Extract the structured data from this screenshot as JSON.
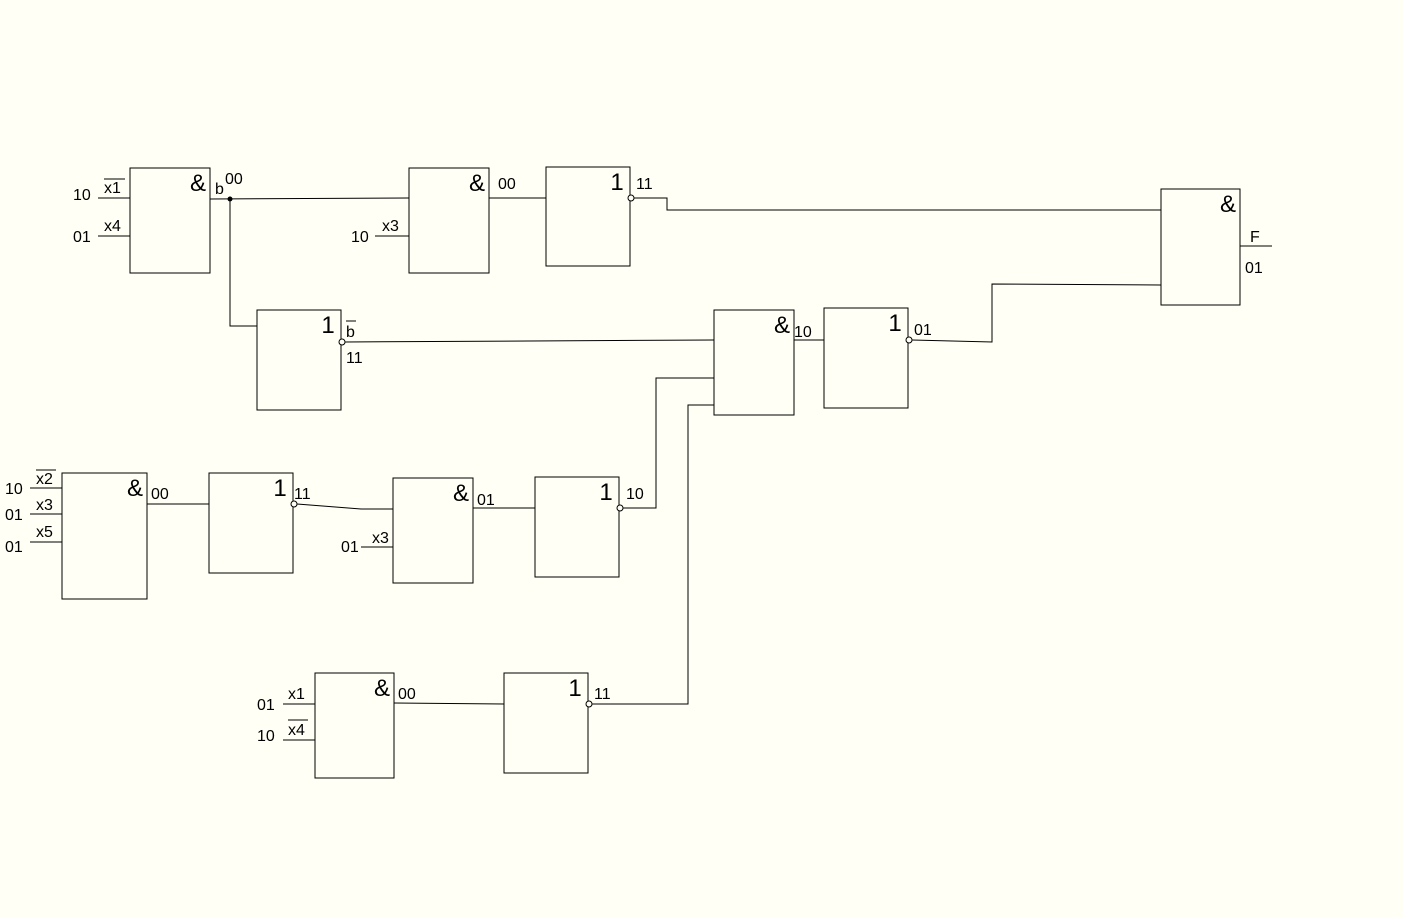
{
  "background": "#fffff5",
  "stroke": "#000000",
  "gates": [
    {
      "id": "g1",
      "symbol": "&"
    },
    {
      "id": "g2",
      "symbol": "&"
    },
    {
      "id": "g3",
      "symbol": "1"
    },
    {
      "id": "g4",
      "symbol": "1"
    },
    {
      "id": "g5",
      "symbol": "&"
    },
    {
      "id": "g6",
      "symbol": "1"
    },
    {
      "id": "g7",
      "symbol": "&"
    },
    {
      "id": "g8",
      "symbol": "&"
    },
    {
      "id": "g9",
      "symbol": "1"
    },
    {
      "id": "g10",
      "symbol": "&"
    },
    {
      "id": "g11",
      "symbol": "1"
    },
    {
      "id": "g12",
      "symbol": "&"
    },
    {
      "id": "g13",
      "symbol": "1"
    }
  ],
  "inputs": {
    "g1_a": {
      "name": "x1",
      "inverted": true,
      "value": "10"
    },
    "g1_b": {
      "name": "x4",
      "inverted": false,
      "value": "01"
    },
    "g2_b": {
      "name": "x3",
      "inverted": false,
      "value": "10"
    },
    "g8_a": {
      "name": "x2",
      "inverted": true,
      "value": "10"
    },
    "g8_b": {
      "name": "x3",
      "inverted": false,
      "value": "01"
    },
    "g8_c": {
      "name": "x5",
      "inverted": false,
      "value": "01"
    },
    "g10_b": {
      "name": "x3",
      "inverted": false,
      "value": "01"
    },
    "g12_a": {
      "name": "x1",
      "inverted": false,
      "value": "01"
    },
    "g12_b": {
      "name": "x4",
      "inverted": true,
      "value": "10"
    }
  },
  "signals": {
    "b_name": "b",
    "b_value": "00",
    "b_not_name": "b",
    "b_not_value": "11",
    "g2_out": "00",
    "g3_out": "11",
    "g5_out": "10",
    "g6_out": "01",
    "g8_out": "00",
    "g9_out": "11",
    "g10_out": "01",
    "g11_out": "10",
    "g12_out": "00",
    "g13_out": "11",
    "f_name": "F",
    "f_value": "01"
  }
}
